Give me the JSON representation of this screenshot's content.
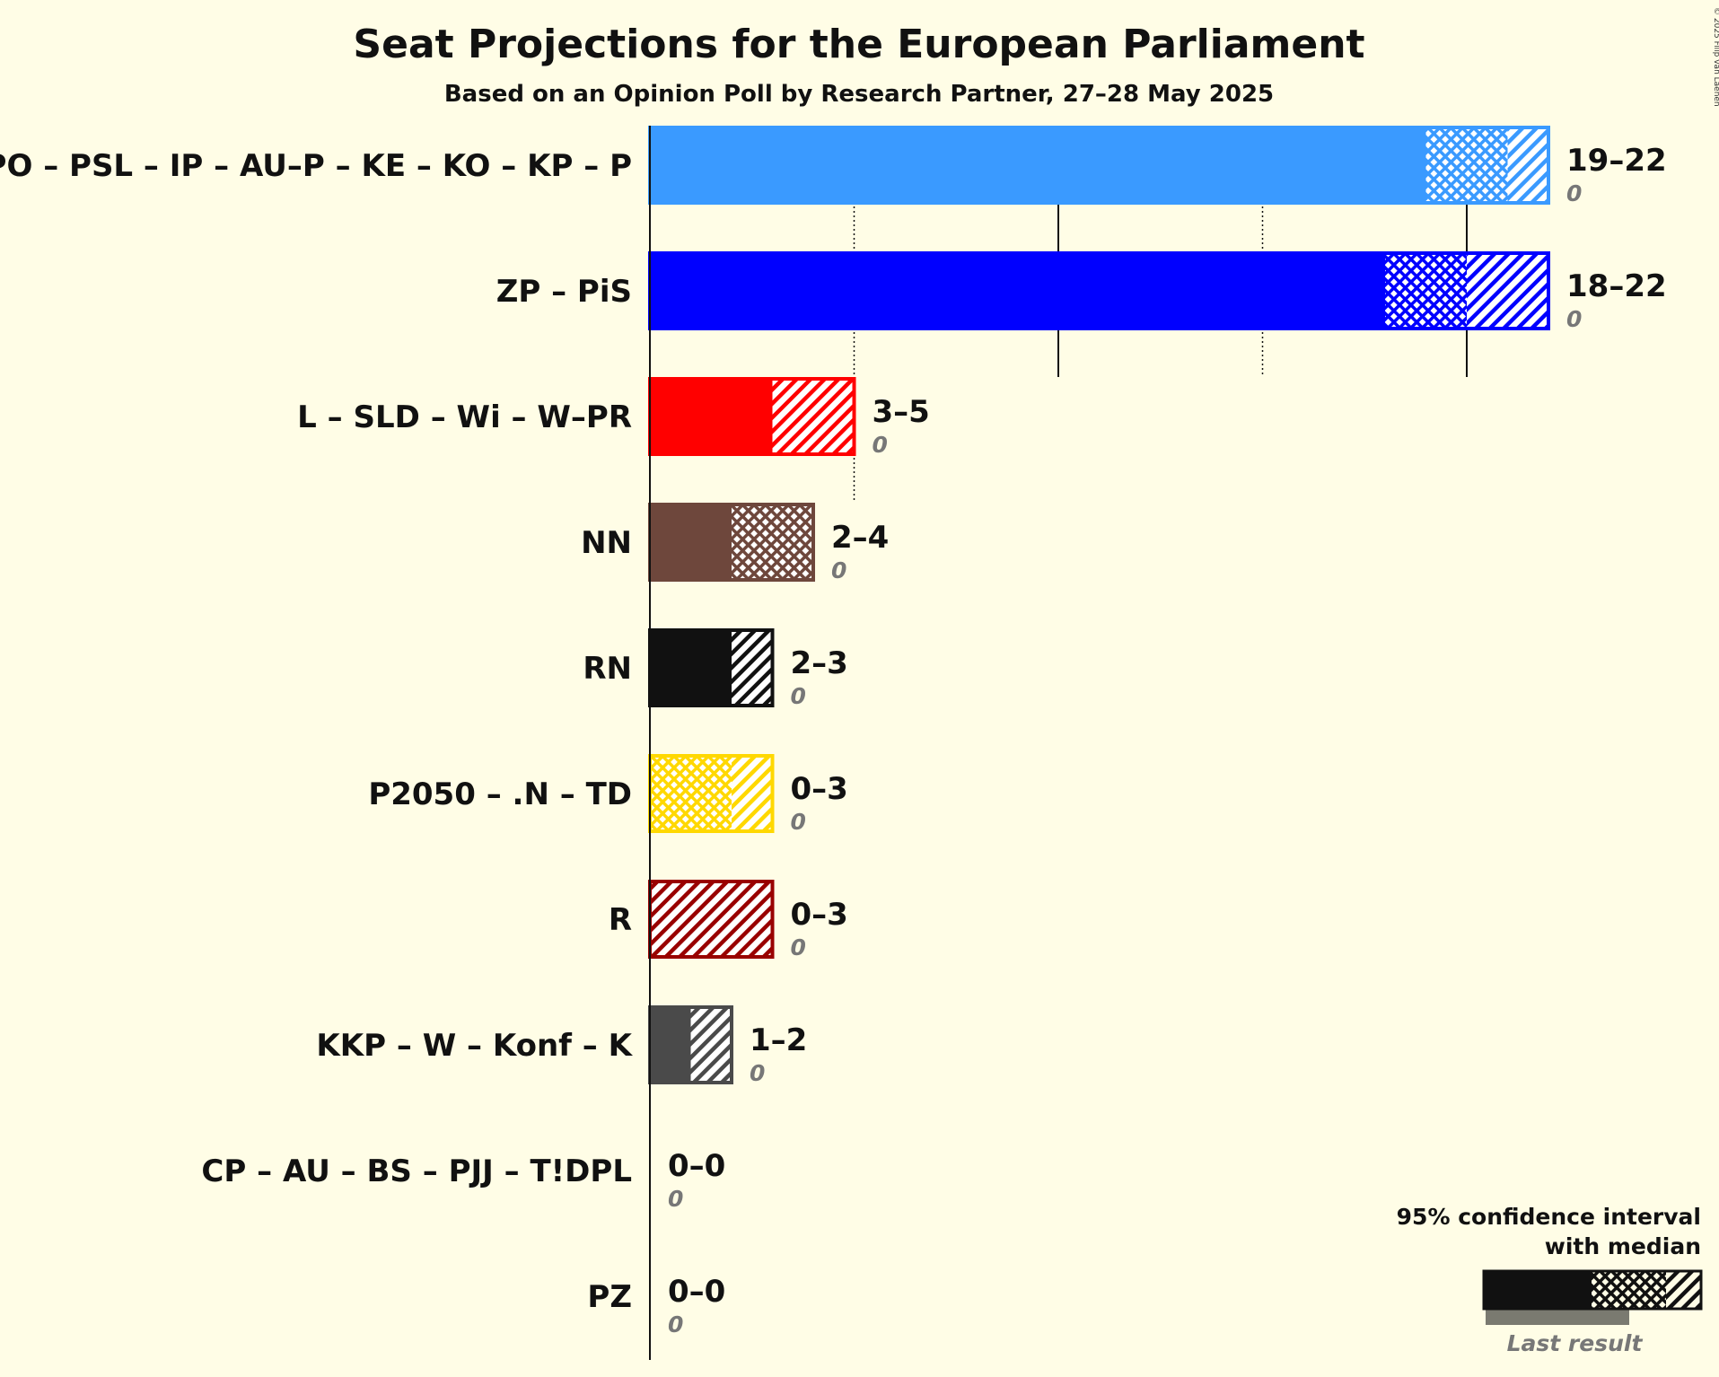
{
  "copyright": "© 2025 Filip van Laenen",
  "chart_data": {
    "type": "bar",
    "orientation": "horizontal",
    "title": "Seat Projections for the European Parliament",
    "subtitle": "Based on an Opinion Poll by Research Partner, 27–28 May 2025",
    "xlim": [
      0,
      22
    ],
    "gridlines": [
      5,
      10,
      15,
      20
    ],
    "series": [
      {
        "name": "PO – PSL – IP – AU–P – KE – KO – KP – P",
        "color": "#3A9AFF",
        "low": 19,
        "median": 21,
        "high": 22,
        "range_label": "19–22",
        "last_result": 0,
        "last_label": "0"
      },
      {
        "name": "ZP – PiS",
        "color": "#0000FF",
        "low": 18,
        "median": 20,
        "high": 22,
        "range_label": "18–22",
        "last_result": 0,
        "last_label": "0"
      },
      {
        "name": "L – SLD – Wi – W–PR",
        "color": "#FF0000",
        "low": 3,
        "median": 3,
        "high": 5,
        "range_label": "3–5",
        "last_result": 0,
        "last_label": "0"
      },
      {
        "name": "NN",
        "color": "#6E473C",
        "low": 2,
        "median": 4,
        "high": 4,
        "range_label": "2–4",
        "last_result": 0,
        "last_label": "0"
      },
      {
        "name": "RN",
        "color": "#111111",
        "low": 2,
        "median": 2,
        "high": 3,
        "range_label": "2–3",
        "last_result": 0,
        "last_label": "0"
      },
      {
        "name": "P2050 – .N – TD",
        "color": "#FFD800",
        "low": 0,
        "median": 2,
        "high": 3,
        "range_label": "0–3",
        "last_result": 0,
        "last_label": "0"
      },
      {
        "name": "R",
        "color": "#990000",
        "low": 0,
        "median": 0,
        "high": 3,
        "range_label": "0–3",
        "last_result": 0,
        "last_label": "0"
      },
      {
        "name": "KKP – W – Konf – K",
        "color": "#4A4A4A",
        "low": 1,
        "median": 1,
        "high": 2,
        "range_label": "1–2",
        "last_result": 0,
        "last_label": "0"
      },
      {
        "name": "CP – AU – BS – PJJ – T!DPL",
        "color": "#777777",
        "low": 0,
        "median": 0,
        "high": 0,
        "range_label": "0–0",
        "last_result": 0,
        "last_label": "0"
      },
      {
        "name": "PZ",
        "color": "#777777",
        "low": 0,
        "median": 0,
        "high": 0,
        "range_label": "0–0",
        "last_result": 0,
        "last_label": "0"
      }
    ],
    "legend": {
      "placement": "bottom-right",
      "line1": "95% confidence interval",
      "line2": "with median",
      "last_result": "Last result"
    }
  }
}
